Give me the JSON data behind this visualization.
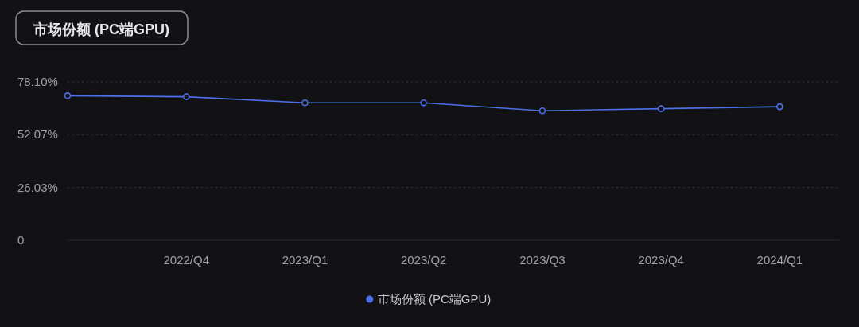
{
  "chart_data": {
    "type": "line",
    "title": "市场份额 (PC端GPU)",
    "categories": [
      null,
      "2022/Q4",
      "2023/Q1",
      "2023/Q2",
      "2023/Q3",
      "2023/Q4",
      "2024/Q1"
    ],
    "ylim": [
      0,
      78.1
    ],
    "yticks": [
      {
        "value": 0,
        "label": "0"
      },
      {
        "value": 26.03,
        "label": "26.03%"
      },
      {
        "value": 52.07,
        "label": "52.07%"
      },
      {
        "value": 78.1,
        "label": "78.10%"
      }
    ],
    "series": [
      {
        "name": "市场份额 (PC端GPU)",
        "color": "#4d6fe8",
        "values": [
          71.3,
          70.8,
          67.8,
          67.8,
          63.9,
          64.9,
          65.9
        ]
      }
    ],
    "marker": "circle",
    "grid": "y",
    "legend": "bottom"
  }
}
